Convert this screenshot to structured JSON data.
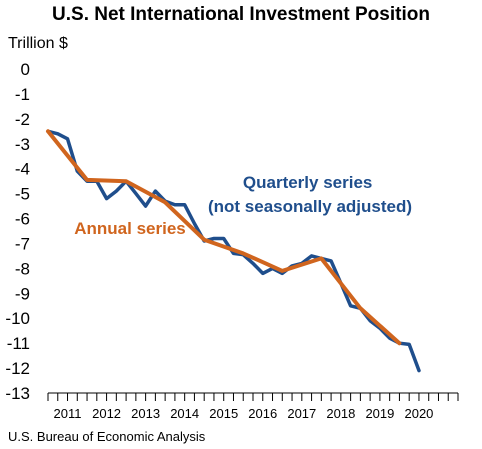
{
  "chart_data": {
    "type": "line",
    "title": "U.S. Net International Investment Position",
    "ylabel": "Trillion $",
    "xlabel": "",
    "source": "U.S. Bureau of Economic Analysis",
    "ylim": [
      -13,
      0
    ],
    "yticks": [
      0,
      -1,
      -2,
      -3,
      -4,
      -5,
      -6,
      -7,
      -8,
      -9,
      -10,
      -11,
      -12,
      -13
    ],
    "xlim": [
      2010.5,
      2021.0
    ],
    "xticks": [
      2011,
      2012,
      2013,
      2014,
      2015,
      2016,
      2017,
      2018,
      2019,
      2020
    ],
    "grid": false,
    "series": [
      {
        "name": "Quarterly series\n(not seasonally adjusted)",
        "color": "#1f4e8c",
        "x": [
          2010.5,
          2010.75,
          2011.0,
          2011.25,
          2011.5,
          2011.75,
          2012.0,
          2012.25,
          2012.5,
          2012.75,
          2013.0,
          2013.25,
          2013.5,
          2013.75,
          2014.0,
          2014.25,
          2014.5,
          2014.75,
          2015.0,
          2015.25,
          2015.5,
          2015.75,
          2016.0,
          2016.25,
          2016.5,
          2016.75,
          2017.0,
          2017.25,
          2017.5,
          2017.75,
          2018.0,
          2018.25,
          2018.5,
          2018.75,
          2019.0,
          2019.25,
          2019.5,
          2019.75,
          2020.0
        ],
        "values": [
          -2.5,
          -2.6,
          -2.8,
          -4.1,
          -4.5,
          -4.5,
          -5.2,
          -4.9,
          -4.5,
          -5.0,
          -5.5,
          -4.9,
          -5.3,
          -5.45,
          -5.45,
          -6.2,
          -6.9,
          -6.8,
          -6.8,
          -7.4,
          -7.45,
          -7.8,
          -8.2,
          -8.0,
          -8.2,
          -7.9,
          -7.8,
          -7.5,
          -7.6,
          -7.7,
          -8.6,
          -9.5,
          -9.6,
          -10.1,
          -10.4,
          -10.8,
          -11.0,
          -11.05,
          -12.1
        ]
      },
      {
        "name": "Annual series",
        "color": "#d0651e",
        "x": [
          2010.5,
          2011.5,
          2012.5,
          2013.5,
          2014.5,
          2015.5,
          2016.5,
          2017.5,
          2018.5,
          2019.5
        ],
        "values": [
          -2.5,
          -4.45,
          -4.5,
          -5.35,
          -6.85,
          -7.4,
          -8.1,
          -7.6,
          -9.6,
          -11.0
        ]
      }
    ]
  }
}
